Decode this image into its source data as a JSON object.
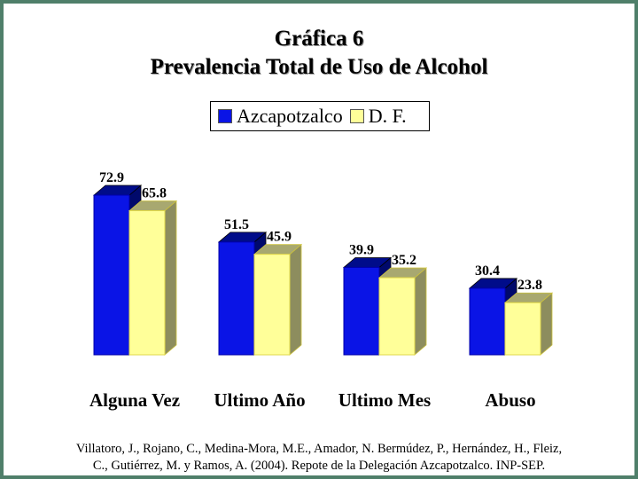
{
  "chart_data": {
    "type": "bar",
    "title": "Gráfica 6",
    "subtitle": "Prevalencia Total de Uso de Alcohol",
    "categories": [
      "Alguna Vez",
      "Ultimo Año",
      "Ultimo Mes",
      "Abuso"
    ],
    "series": [
      {
        "name": "Azcapotzalco",
        "values": [
          72.9,
          51.5,
          39.9,
          30.4
        ],
        "color": "#0a14e6"
      },
      {
        "name": "D. F.",
        "values": [
          65.8,
          45.9,
          35.2,
          23.8
        ],
        "color": "#ffff99"
      }
    ],
    "value_labels": {
      "Azcapotzalco": [
        "72.9",
        "51.5",
        "39.9",
        "30.4"
      ],
      "D. F.": [
        "65.8",
        "45.9",
        "35.2",
        "23.8"
      ]
    },
    "ylim": [
      0,
      80
    ],
    "grid": false,
    "legend_position": "top-center",
    "style": "3d-bar"
  },
  "source": {
    "line1": "Villatoro, J., Rojano, C., Medina-Mora, M.E., Amador, N. Bermúdez, P., Hernández, H., Fleiz,",
    "line2": "C., Gutiérrez, M. y Ramos, A. (2004). Repote de la Delegación Azcapotzalco. INP-SEP."
  },
  "colors": {
    "frame": "#4f7f6a",
    "series1": "#0a14e6",
    "series2": "#ffff99"
  }
}
